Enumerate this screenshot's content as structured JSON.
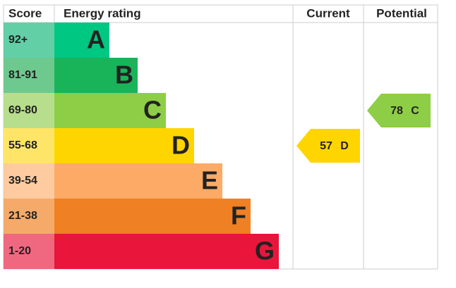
{
  "chart_data": {
    "type": "epc",
    "headers": [
      "Score",
      "Energy rating",
      "Current",
      "Potential"
    ],
    "bands": [
      {
        "score": "92+",
        "rating": "A",
        "color": "#00c781",
        "score_color": "#62cfa6"
      },
      {
        "score": "81-91",
        "rating": "B",
        "color": "#19b459",
        "score_color": "#6ec98f"
      },
      {
        "score": "69-80",
        "rating": "C",
        "color": "#8dce46",
        "score_color": "#b7de8c"
      },
      {
        "score": "55-68",
        "rating": "D",
        "color": "#ffd500",
        "score_color": "#ffe567"
      },
      {
        "score": "39-54",
        "rating": "E",
        "color": "#fcaa65",
        "score_color": "#fdcb9f"
      },
      {
        "score": "21-38",
        "rating": "F",
        "color": "#ef8023",
        "score_color": "#f5aa6a"
      },
      {
        "score": "1-20",
        "rating": "G",
        "color": "#e9153b",
        "score_color": "#f06880"
      }
    ],
    "current": {
      "value": 57,
      "rating": "D"
    },
    "potential": {
      "value": 78,
      "rating": "C"
    }
  }
}
